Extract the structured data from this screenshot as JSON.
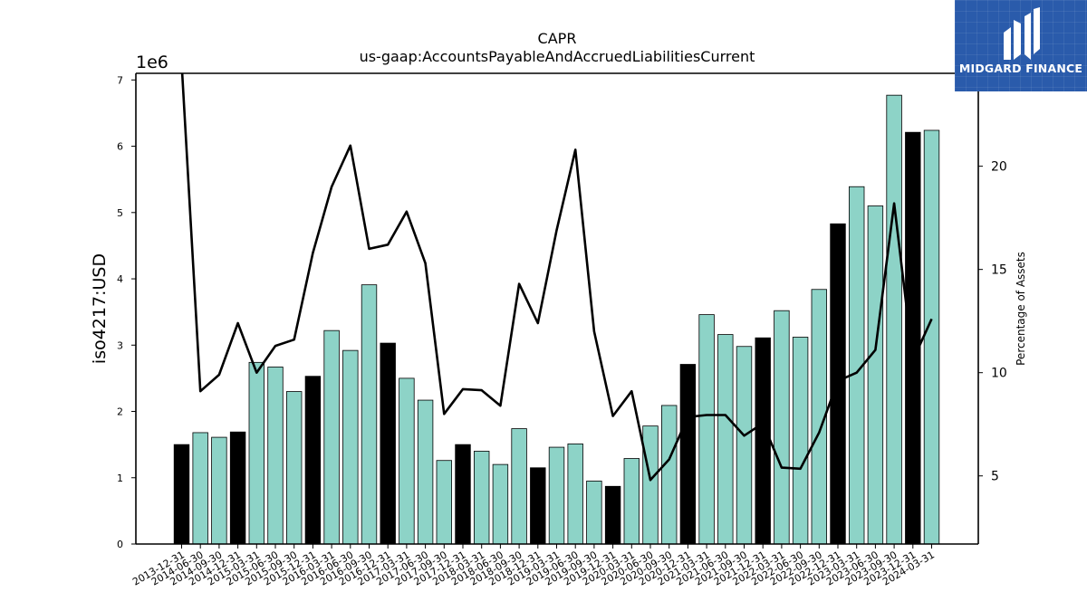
{
  "chart_data": {
    "type": "bar",
    "title": "CAPR",
    "subtitle": "us-gaap:AccountsPayableAndAccruedLiabilitiesCurrent",
    "ylabel": "iso4217:USD",
    "y_multiplier_label": "1e6",
    "y2label": "Percentage of Assets",
    "ylim": [
      0,
      7100000
    ],
    "y2lim": [
      1.7,
      24.5
    ],
    "yticks": [
      "0",
      "1",
      "2",
      "3",
      "4",
      "5",
      "6",
      "7"
    ],
    "y2ticks": [
      "5",
      "10",
      "15",
      "20"
    ],
    "grid": false,
    "colors": {
      "bar": "#8dd3c7",
      "bar_highlight": "#000000",
      "line": "#000000",
      "logo_bg": "#2a5bab"
    },
    "categories": [
      "2013-12-31",
      "2014-06-30",
      "2014-09-30",
      "2014-12-31",
      "2015-03-31",
      "2015-06-30",
      "2015-09-30",
      "2015-12-31",
      "2016-03-31",
      "2016-06-30",
      "2016-09-30",
      "2016-12-31",
      "2017-03-31",
      "2017-06-30",
      "2017-09-30",
      "2017-12-31",
      "2018-03-31",
      "2018-06-30",
      "2018-09-30",
      "2018-12-31",
      "2019-03-31",
      "2019-06-30",
      "2019-09-30",
      "2019-12-31",
      "2020-03-31",
      "2020-06-30",
      "2020-09-30",
      "2020-12-31",
      "2021-03-31",
      "2021-06-30",
      "2021-09-30",
      "2021-12-31",
      "2022-03-31",
      "2022-06-30",
      "2022-09-30",
      "2022-12-31",
      "2023-03-31",
      "2023-06-30",
      "2023-09-30",
      "2023-12-31",
      "2024-03-31"
    ],
    "series": [
      {
        "kind": "bar",
        "values": [
          1500000,
          1680000,
          1610000,
          1690000,
          2740000,
          2670000,
          2300000,
          2530000,
          3220000,
          2920000,
          3910000,
          3030000,
          2500000,
          2170000,
          1260000,
          1500000,
          1400000,
          1200000,
          1740000,
          1150000,
          1460000,
          1510000,
          950000,
          870000,
          1290000,
          1780000,
          2090000,
          2710000,
          3460000,
          3160000,
          2980000,
          3110000,
          3520000,
          3120000,
          3840000,
          4830000,
          5390000,
          5100000,
          6770000,
          6210000,
          6240000
        ],
        "highlight": [
          true,
          false,
          false,
          true,
          false,
          false,
          false,
          true,
          false,
          false,
          false,
          true,
          false,
          false,
          false,
          true,
          false,
          false,
          false,
          true,
          false,
          false,
          false,
          true,
          false,
          false,
          false,
          true,
          false,
          false,
          false,
          true,
          false,
          false,
          false,
          true,
          false,
          false,
          false,
          true,
          false
        ]
      },
      {
        "kind": "line",
        "axis": "right",
        "values": [
          25,
          9.1,
          9.9,
          12.4,
          10.0,
          11.3,
          11.6,
          15.8,
          19.0,
          21.0,
          16.0,
          16.2,
          17.8,
          15.3,
          8.0,
          9.2,
          9.15,
          8.4,
          14.3,
          12.4,
          16.9,
          20.8,
          12.0,
          7.9,
          9.1,
          4.8,
          5.8,
          7.85,
          7.95,
          7.95,
          6.95,
          7.55,
          5.4,
          5.35,
          7.1,
          9.6,
          10.0,
          11.1,
          18.2,
          10.6,
          12.6
        ]
      }
    ]
  },
  "logo": {
    "text": "MIDGARD FINANCE",
    "icon": "midgard-logo-icon"
  }
}
